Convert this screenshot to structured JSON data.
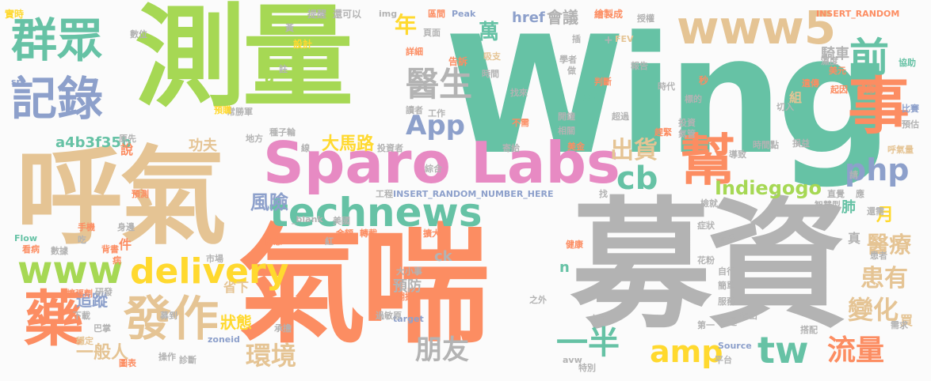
{
  "colors": {
    "green": "#66c2a5",
    "orange": "#fc8d62",
    "blue": "#8da0cb",
    "pink": "#e78ac3",
    "lime": "#a6d854",
    "yellow": "#ffd92f",
    "tan": "#e5c494",
    "grey": "#b3b3b3"
  },
  "words": [
    {
      "text": "Wing",
      "color": "green"
    },
    {
      "text": "募資",
      "color": "grey"
    },
    {
      "text": "氣喘",
      "color": "orange"
    },
    {
      "text": "測量",
      "color": "lime"
    },
    {
      "text": "呼氣",
      "color": "tan"
    },
    {
      "text": "Sparo Labs",
      "color": "pink"
    },
    {
      "text": "technews",
      "color": "green"
    },
    {
      "text": "群眾",
      "color": "green"
    },
    {
      "text": "記錄",
      "color": "blue"
    },
    {
      "text": "www5",
      "color": "tan"
    },
    {
      "text": "事",
      "color": "orange"
    },
    {
      "text": "前",
      "color": "green"
    },
    {
      "text": "醫生",
      "color": "grey"
    },
    {
      "text": "幫",
      "color": "orange"
    },
    {
      "text": "www",
      "color": "lime"
    },
    {
      "text": "delivery",
      "color": "yellow"
    },
    {
      "text": "發作",
      "color": "tan"
    },
    {
      "text": "藥",
      "color": "orange"
    },
    {
      "text": "tw",
      "color": "green"
    },
    {
      "text": "amp",
      "color": "yellow"
    },
    {
      "text": "朋友",
      "color": "grey"
    },
    {
      "text": "一半",
      "color": "green"
    },
    {
      "text": "環境",
      "color": "tan"
    },
    {
      "text": "流量",
      "color": "orange"
    },
    {
      "text": "變化",
      "color": "tan"
    },
    {
      "text": "患有",
      "color": "tan"
    },
    {
      "text": "醫療",
      "color": "tan"
    },
    {
      "text": "php",
      "color": "blue"
    },
    {
      "text": "cb",
      "color": "green"
    },
    {
      "text": "App",
      "color": "blue"
    },
    {
      "text": "出貨",
      "color": "tan"
    },
    {
      "text": "風險",
      "color": "blue"
    },
    {
      "text": "Indiegogo",
      "color": "lime"
    },
    {
      "text": "年",
      "color": "yellow"
    },
    {
      "text": "萬",
      "color": "green"
    },
    {
      "text": "a4b3f35b",
      "color": "green"
    },
    {
      "text": "大馬路",
      "color": "yellow"
    },
    {
      "text": "功夫",
      "color": "tan"
    },
    {
      "text": "追蹤",
      "color": "blue"
    },
    {
      "text": "一般人",
      "color": "tan"
    },
    {
      "text": "狀態",
      "color": "yellow"
    },
    {
      "text": "預防",
      "color": "grey"
    },
    {
      "text": "會議",
      "color": "grey"
    },
    {
      "text": "href",
      "color": "blue"
    },
    {
      "text": "騎車",
      "color": "grey"
    },
    {
      "text": "月",
      "color": "yellow"
    },
    {
      "text": "肺",
      "color": "green"
    },
    {
      "text": "買",
      "color": "tan"
    },
    {
      "text": "ck",
      "color": "grey"
    },
    {
      "text": "n",
      "color": "green"
    },
    {
      "text": "省下",
      "color": "tan"
    },
    {
      "text": "件",
      "color": "orange"
    },
    {
      "text": "說",
      "color": "orange"
    },
    {
      "text": "組",
      "color": "tan"
    },
    {
      "text": "真",
      "color": "grey"
    },
    {
      "text": "a",
      "color": "lime"
    },
    {
      "text": "設計",
      "color": "yellow"
    },
    {
      "text": "提醒",
      "color": "grey"
    },
    {
      "text": "還可以",
      "color": "grey"
    },
    {
      "text": "img",
      "color": "grey"
    },
    {
      "text": "區間",
      "color": "orange"
    },
    {
      "text": "Peak",
      "color": "blue"
    },
    {
      "text": "繪製成",
      "color": "orange"
    },
    {
      "text": "授權",
      "color": "grey"
    },
    {
      "text": "INSERT_RANDOM",
      "color": "orange"
    },
    {
      "text": "實時",
      "color": "yellow"
    },
    {
      "text": "數位",
      "color": "grey"
    },
    {
      "text": "頁面",
      "color": "grey"
    },
    {
      "text": "src",
      "color": "blue"
    },
    {
      "text": "FEV",
      "color": "tan"
    },
    {
      "text": "美元",
      "color": "orange"
    },
    {
      "text": "協助",
      "color": "green"
    },
    {
      "text": "濕度",
      "color": "grey"
    },
    {
      "text": "報告",
      "color": "grey"
    },
    {
      "text": "學者",
      "color": "grey"
    },
    {
      "text": "告訴",
      "color": "orange"
    },
    {
      "text": "詳細",
      "color": "orange"
    },
    {
      "text": "吸支",
      "color": "tan"
    },
    {
      "text": "判斷",
      "color": "orange"
    },
    {
      "text": "時代",
      "color": "grey"
    },
    {
      "text": "秒",
      "color": "orange"
    },
    {
      "text": "遺傳",
      "color": "orange"
    },
    {
      "text": "起因",
      "color": "orange"
    },
    {
      "text": "感應器",
      "color": "orange"
    },
    {
      "text": "比賽",
      "color": "blue"
    },
    {
      "text": "預估",
      "color": "grey"
    },
    {
      "text": "落在",
      "color": "green"
    },
    {
      "text": "標的",
      "color": "grey"
    },
    {
      "text": "工作",
      "color": "grey"
    },
    {
      "text": "常勝軍",
      "color": "grey"
    },
    {
      "text": "找來",
      "color": "grey"
    },
    {
      "text": "讀者",
      "color": "grey"
    },
    {
      "text": "超過",
      "color": "grey"
    },
    {
      "text": "切入",
      "color": "grey"
    },
    {
      "text": "開鐘",
      "color": "grey"
    },
    {
      "text": "相關",
      "color": "grey"
    },
    {
      "text": "不需",
      "color": "orange"
    },
    {
      "text": "投資",
      "color": "grey"
    },
    {
      "text": "氣管",
      "color": "grey"
    },
    {
      "text": "時間點",
      "color": "grey"
    },
    {
      "text": "損益",
      "color": "grey"
    },
    {
      "text": "呼氣量",
      "color": "tan"
    },
    {
      "text": "導致",
      "color": "grey"
    },
    {
      "text": "寄給",
      "color": "grey"
    },
    {
      "text": "美金",
      "color": "orange"
    },
    {
      "text": "綜合",
      "color": "grey"
    },
    {
      "text": "投資者",
      "color": "grey"
    },
    {
      "text": "地方",
      "color": "grey"
    },
    {
      "text": "種子輪",
      "color": "grey"
    },
    {
      "text": "趕緊",
      "color": "orange"
    },
    {
      "text": "預購",
      "color": "yellow"
    },
    {
      "text": "INSERT_RANDOM_NUMBER_HERE",
      "color": "blue"
    },
    {
      "text": "工程",
      "color": "grey"
    },
    {
      "text": "找",
      "color": "grey"
    },
    {
      "text": "智慧型",
      "color": "grey"
    },
    {
      "text": "直覺",
      "color": "grey"
    },
    {
      "text": "應",
      "color": "grey"
    },
    {
      "text": "症狀",
      "color": "grey"
    },
    {
      "text": "看好",
      "color": "grey"
    },
    {
      "text": "檢就",
      "color": "grey"
    },
    {
      "text": "美國",
      "color": "grey"
    },
    {
      "text": "預測",
      "color": "orange"
    },
    {
      "text": "_blank",
      "color": "grey"
    },
    {
      "text": "Flow",
      "color": "green"
    },
    {
      "text": "身邊",
      "color": "grey"
    },
    {
      "text": "手機",
      "color": "orange"
    },
    {
      "text": "看病",
      "color": "orange"
    },
    {
      "text": "數據",
      "color": "grey"
    },
    {
      "text": "背書",
      "color": "orange"
    },
    {
      "text": "吃",
      "color": "grey"
    },
    {
      "text": "病",
      "color": "orange"
    },
    {
      "text": "研發",
      "color": "grey"
    },
    {
      "text": "市場",
      "color": "grey"
    },
    {
      "text": "留意",
      "color": "orange"
    },
    {
      "text": "轉載",
      "color": "orange"
    },
    {
      "text": "金額",
      "color": "orange"
    },
    {
      "text": "擴大",
      "color": "orange"
    },
    {
      "text": "健康",
      "color": "orange"
    },
    {
      "text": "花粉",
      "color": "grey"
    },
    {
      "text": "自行",
      "color": "grey"
    },
    {
      "text": "簡單",
      "color": "grey"
    },
    {
      "text": "服務",
      "color": "grey"
    },
    {
      "text": "推出",
      "color": "grey"
    },
    {
      "text": "延遲",
      "color": "grey"
    },
    {
      "text": "第一",
      "color": "grey"
    },
    {
      "text": "患者",
      "color": "grey"
    },
    {
      "text": "需求",
      "color": "grey"
    },
    {
      "text": "擴張劑",
      "color": "orange"
    },
    {
      "text": "下載",
      "color": "grey"
    },
    {
      "text": "巴掌",
      "color": "grey"
    },
    {
      "text": "募到",
      "color": "grey"
    },
    {
      "text": "穩定",
      "color": "tan"
    },
    {
      "text": "圖表",
      "color": "orange"
    },
    {
      "text": "操作",
      "color": "grey"
    },
    {
      "text": "診斷",
      "color": "grey"
    },
    {
      "text": "zoneid",
      "color": "blue"
    },
    {
      "text": "承擔",
      "color": "grey"
    },
    {
      "text": "target",
      "color": "blue"
    },
    {
      "text": "大小事",
      "color": "grey"
    },
    {
      "text": "翻攝",
      "color": "orange"
    },
    {
      "text": "過敏原",
      "color": "grey"
    },
    {
      "text": "之外",
      "color": "grey"
    },
    {
      "text": "avw",
      "color": "grey"
    },
    {
      "text": "本文",
      "color": "grey"
    },
    {
      "text": "Source",
      "color": "blue"
    },
    {
      "text": "平台",
      "color": "grey"
    },
    {
      "text": "搭配",
      "color": "grey"
    },
    {
      "text": "特別",
      "color": "grey"
    },
    {
      "text": "還需",
      "color": "grey"
    },
    {
      "text": "紅",
      "color": "grey"
    },
    {
      "text": "插",
      "color": "grey"
    },
    {
      "text": "做",
      "color": "grey"
    },
    {
      "text": "時間",
      "color": "grey"
    },
    {
      "text": "註",
      "color": "grey"
    },
    {
      "text": "黃",
      "color": "grey"
    },
    {
      "text": "請",
      "color": "grey"
    },
    {
      "text": "原先",
      "color": "grey"
    },
    {
      "text": "線",
      "color": "grey"
    },
    {
      "text": "+",
      "color": "grey"
    }
  ]
}
